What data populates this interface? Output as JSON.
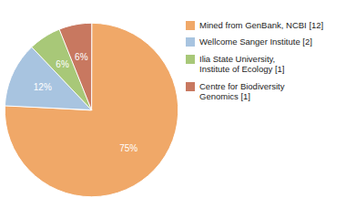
{
  "chart_data": {
    "type": "pie",
    "categories": [
      "Mined from GenBank, NCBI [12]",
      "Wellcome Sanger Institute [2]",
      "Ilia State University,\nInstitute of Ecology [1]",
      "Centre for Biodiversity\nGenomics [1]"
    ],
    "values": [
      75,
      12,
      6,
      6
    ],
    "value_labels": [
      "75%",
      "12%",
      "6%",
      "6%"
    ],
    "colors": [
      "#f0a868",
      "#a8c4e0",
      "#a8c878",
      "#c87860"
    ],
    "data_labels": true,
    "legend": "right"
  }
}
